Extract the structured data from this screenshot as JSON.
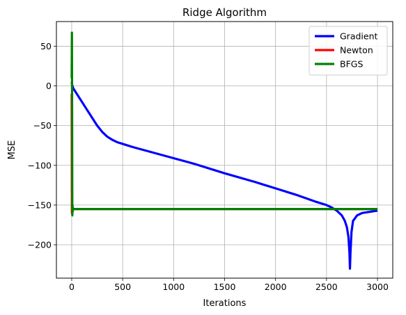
{
  "chart_data": {
    "type": "line",
    "title": "Ridge Algorithm",
    "xlabel": "Iterations",
    "ylabel": "MSE",
    "xlim": [
      -150,
      3150
    ],
    "ylim": [
      -242,
      81
    ],
    "xticks": [
      0,
      500,
      1000,
      1500,
      2000,
      2500,
      3000
    ],
    "xtick_labels": [
      "0",
      "500",
      "1000",
      "1500",
      "2000",
      "2500",
      "3000"
    ],
    "yticks": [
      -200,
      -150,
      -100,
      -50,
      0,
      50
    ],
    "ytick_labels": [
      "−200",
      "−150",
      "−100",
      "−50",
      "0",
      "50"
    ],
    "grid": true,
    "legend_position": "top-right",
    "series": [
      {
        "name": "Gradient",
        "color": "#0000ff",
        "x": [
          0,
          5,
          15,
          30,
          60,
          100,
          150,
          200,
          250,
          300,
          350,
          400,
          450,
          500,
          600,
          800,
          1000,
          1200,
          1500,
          1800,
          2000,
          2200,
          2400,
          2500,
          2550,
          2600,
          2650,
          2680,
          2700,
          2715,
          2725,
          2730,
          2735,
          2745,
          2760,
          2800,
          2850,
          2900,
          3000
        ],
        "values": [
          5,
          1,
          -3,
          -6,
          -12,
          -20,
          -30,
          -40,
          -50,
          -58,
          -64,
          -68,
          -71,
          -73,
          -77,
          -84,
          -91,
          -98,
          -110,
          -121,
          -129,
          -137,
          -146,
          -150,
          -153,
          -157,
          -163,
          -170,
          -178,
          -190,
          -210,
          -230,
          -210,
          -184,
          -170,
          -163,
          -160,
          -159,
          -157
        ]
      },
      {
        "name": "Newton",
        "color": "#ff0000",
        "x": [
          0,
          2,
          4,
          6,
          10,
          3000
        ],
        "values": [
          -10,
          -160,
          -154,
          -155,
          -155,
          -155
        ]
      },
      {
        "name": "BFGS",
        "color": "#008000",
        "x": [
          0,
          2,
          4,
          6,
          8,
          10,
          14,
          20,
          3000
        ],
        "values": [
          10,
          67,
          -30,
          -163,
          -150,
          -158,
          -154,
          -155,
          -155
        ]
      }
    ]
  }
}
